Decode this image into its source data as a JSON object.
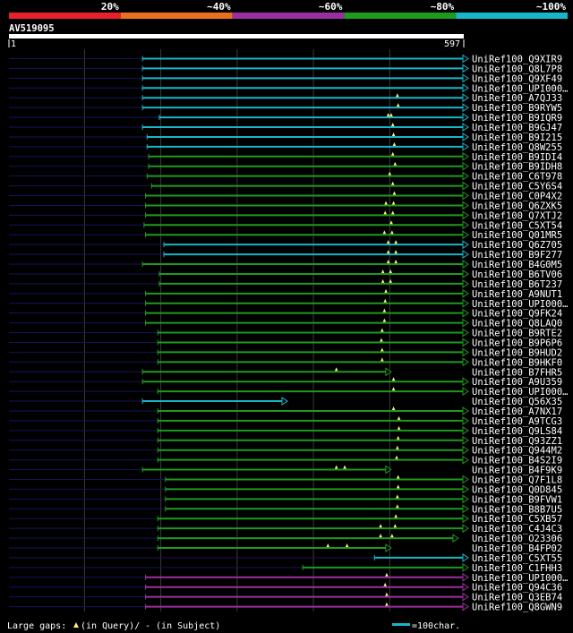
{
  "header": {
    "identity_bins": [
      "20%",
      "~40%",
      "~60%",
      "~80%",
      "~100%"
    ],
    "bin_colors": [
      "#e8202a",
      "#e8701e",
      "#9a2fa0",
      "#1e9a1e",
      "#17b6c8"
    ],
    "query_id": "AV519095",
    "scale_start": "1",
    "scale_end": "597",
    "query_length": 597
  },
  "legend": {
    "gap_text": "Large gaps: ",
    "query_gap_text": "(in Query)/",
    "subject_gap_text": "- (in Subject)",
    "scale_text": "=100char."
  },
  "hits": [
    {
      "name": "UniRef100_Q9XIR9",
      "start": 176,
      "end": 597,
      "color": "cyan",
      "arrow": true,
      "marks": []
    },
    {
      "name": "UniRef100_Q8L7P8",
      "start": 176,
      "end": 597,
      "color": "cyan",
      "arrow": true,
      "marks": []
    },
    {
      "name": "UniRef100_Q9XF49",
      "start": 176,
      "end": 597,
      "color": "cyan",
      "arrow": true,
      "marks": []
    },
    {
      "name": "UniRef100_UPI000…",
      "start": 176,
      "end": 597,
      "color": "cyan",
      "arrow": true,
      "marks": []
    },
    {
      "name": "UniRef100_A7QJ33",
      "start": 176,
      "end": 597,
      "color": "cyan",
      "arrow": true,
      "marks": [
        510
      ]
    },
    {
      "name": "UniRef100_B9RYW5",
      "start": 176,
      "end": 597,
      "color": "cyan",
      "arrow": true,
      "marks": [
        511
      ]
    },
    {
      "name": "UniRef100_B9IQR9",
      "start": 198,
      "end": 597,
      "color": "cyan",
      "arrow": true,
      "marks": [
        498,
        502
      ]
    },
    {
      "name": "UniRef100_B9GJ47",
      "start": 176,
      "end": 597,
      "color": "cyan",
      "arrow": true,
      "marks": [
        504
      ]
    },
    {
      "name": "UniRef100_B9I215",
      "start": 182,
      "end": 597,
      "color": "cyan",
      "arrow": true,
      "marks": [
        505
      ]
    },
    {
      "name": "UniRef100_Q8W255",
      "start": 182,
      "end": 597,
      "color": "cyan",
      "arrow": true,
      "marks": [
        506
      ]
    },
    {
      "name": "UniRef100_B9IDI4",
      "start": 184,
      "end": 597,
      "color": "green",
      "arrow": true,
      "marks": [
        504
      ]
    },
    {
      "name": "UniRef100_B9IDH8",
      "start": 184,
      "end": 597,
      "color": "green",
      "arrow": true,
      "marks": [
        507
      ]
    },
    {
      "name": "UniRef100_C6T978",
      "start": 182,
      "end": 597,
      "color": "green",
      "arrow": true,
      "marks": [
        500
      ]
    },
    {
      "name": "UniRef100_C5Y6S4",
      "start": 188,
      "end": 597,
      "color": "green",
      "arrow": true,
      "marks": [
        504
      ]
    },
    {
      "name": "UniRef100_C0P4X2",
      "start": 180,
      "end": 597,
      "color": "green",
      "arrow": true,
      "marks": [
        506
      ]
    },
    {
      "name": "UniRef100_Q6ZXK5",
      "start": 180,
      "end": 597,
      "color": "green",
      "arrow": true,
      "marks": [
        495,
        505
      ]
    },
    {
      "name": "UniRef100_Q7XTJ2",
      "start": 180,
      "end": 597,
      "color": "green",
      "arrow": true,
      "marks": [
        494,
        504
      ]
    },
    {
      "name": "UniRef100_C5XT54",
      "start": 178,
      "end": 597,
      "color": "green",
      "arrow": true,
      "marks": [
        502
      ]
    },
    {
      "name": "UniRef100_Q01MR5",
      "start": 180,
      "end": 597,
      "color": "green",
      "arrow": true,
      "marks": [
        493,
        503
      ]
    },
    {
      "name": "UniRef100_Q6Z705",
      "start": 204,
      "end": 597,
      "color": "cyan",
      "arrow": true,
      "marks": [
        498,
        508
      ]
    },
    {
      "name": "UniRef100_B9F277",
      "start": 204,
      "end": 597,
      "color": "cyan",
      "arrow": true,
      "marks": [
        498,
        508
      ]
    },
    {
      "name": "UniRef100_B4G0M5",
      "start": 176,
      "end": 597,
      "color": "green",
      "arrow": true,
      "marks": [
        498,
        508
      ]
    },
    {
      "name": "UniRef100_B6TV06",
      "start": 198,
      "end": 597,
      "color": "green",
      "arrow": true,
      "marks": [
        491,
        501
      ]
    },
    {
      "name": "UniRef100_B6T237",
      "start": 198,
      "end": 597,
      "color": "green",
      "arrow": true,
      "marks": [
        491,
        501
      ]
    },
    {
      "name": "UniRef100_A9NUT1",
      "start": 180,
      "end": 597,
      "color": "green",
      "arrow": true,
      "marks": [
        495
      ]
    },
    {
      "name": "UniRef100_UPI000…",
      "start": 180,
      "end": 597,
      "color": "green",
      "arrow": true,
      "marks": [
        494
      ]
    },
    {
      "name": "UniRef100_Q9FK24",
      "start": 180,
      "end": 597,
      "color": "green",
      "arrow": true,
      "marks": [
        493
      ]
    },
    {
      "name": "UniRef100_Q8LAQ0",
      "start": 180,
      "end": 597,
      "color": "green",
      "arrow": true,
      "marks": [
        493
      ]
    },
    {
      "name": "UniRef100_B9RTE2",
      "start": 196,
      "end": 597,
      "color": "green",
      "arrow": true,
      "marks": [
        490
      ]
    },
    {
      "name": "UniRef100_B9P6P6",
      "start": 196,
      "end": 597,
      "color": "green",
      "arrow": true,
      "marks": [
        489
      ]
    },
    {
      "name": "UniRef100_B9HUD2",
      "start": 196,
      "end": 597,
      "color": "green",
      "arrow": true,
      "marks": [
        490
      ]
    },
    {
      "name": "UniRef100_B9HKF0",
      "start": 196,
      "end": 597,
      "color": "green",
      "arrow": true,
      "marks": [
        490
      ]
    },
    {
      "name": "UniRef100_B7FHR5",
      "start": 176,
      "end": 496,
      "color": "green",
      "arrow": true,
      "marks": [
        430
      ]
    },
    {
      "name": "UniRef100_A9U359",
      "start": 176,
      "end": 597,
      "color": "green",
      "arrow": true,
      "marks": [
        505
      ]
    },
    {
      "name": "UniRef100_UPI000…",
      "start": 196,
      "end": 597,
      "color": "green",
      "arrow": true,
      "marks": [
        505
      ]
    },
    {
      "name": "UniRef100_Q56X35",
      "start": 176,
      "end": 360,
      "color": "cyan",
      "arrow": true,
      "marks": []
    },
    {
      "name": "UniRef100_A7NX17",
      "start": 196,
      "end": 597,
      "color": "green",
      "arrow": true,
      "marks": [
        505
      ]
    },
    {
      "name": "UniRef100_A9TCG3",
      "start": 196,
      "end": 597,
      "color": "green",
      "arrow": true,
      "marks": [
        512
      ]
    },
    {
      "name": "UniRef100_Q9LS84",
      "start": 196,
      "end": 597,
      "color": "green",
      "arrow": true,
      "marks": [
        512
      ]
    },
    {
      "name": "UniRef100_Q93ZZ1",
      "start": 196,
      "end": 597,
      "color": "green",
      "arrow": true,
      "marks": [
        511
      ]
    },
    {
      "name": "UniRef100_Q944M2",
      "start": 196,
      "end": 597,
      "color": "green",
      "arrow": true,
      "marks": [
        510
      ]
    },
    {
      "name": "UniRef100_B4S2I9",
      "start": 196,
      "end": 597,
      "color": "green",
      "arrow": true,
      "marks": [
        509
      ]
    },
    {
      "name": "UniRef100_B4F9K9",
      "start": 176,
      "end": 496,
      "color": "green",
      "arrow": true,
      "marks": [
        430,
        441
      ]
    },
    {
      "name": "UniRef100_Q7F1L8",
      "start": 206,
      "end": 597,
      "color": "green",
      "arrow": true,
      "marks": [
        511
      ]
    },
    {
      "name": "UniRef100_Q0D845",
      "start": 206,
      "end": 597,
      "color": "green",
      "arrow": true,
      "marks": [
        511
      ]
    },
    {
      "name": "UniRef100_B9FVW1",
      "start": 206,
      "end": 597,
      "color": "green",
      "arrow": true,
      "marks": [
        510
      ]
    },
    {
      "name": "UniRef100_B8B7U5",
      "start": 206,
      "end": 597,
      "color": "green",
      "arrow": true,
      "marks": [
        510
      ]
    },
    {
      "name": "UniRef100_C5XB57",
      "start": 196,
      "end": 597,
      "color": "green",
      "arrow": true,
      "marks": [
        508
      ]
    },
    {
      "name": "UniRef100_C4J4C3",
      "start": 196,
      "end": 597,
      "color": "green",
      "arrow": true,
      "marks": [
        488,
        507
      ]
    },
    {
      "name": "UniRef100_O23306",
      "start": 196,
      "end": 584,
      "color": "green",
      "arrow": true,
      "marks": [
        488,
        503
      ]
    },
    {
      "name": "UniRef100_B4FP02",
      "start": 196,
      "end": 496,
      "color": "green",
      "arrow": true,
      "marks": [
        419,
        444
      ]
    },
    {
      "name": "UniRef100_C5XT55",
      "start": 480,
      "end": 597,
      "color": "cyan",
      "arrow": true,
      "marks": []
    },
    {
      "name": "UniRef100_C1FHH3",
      "start": 386,
      "end": 597,
      "color": "green",
      "arrow": true,
      "marks": []
    },
    {
      "name": "UniRef100_UPI000…",
      "start": 180,
      "end": 597,
      "color": "purple",
      "arrow": true,
      "marks": [
        496
      ]
    },
    {
      "name": "UniRef100_Q94C36",
      "start": 180,
      "end": 597,
      "color": "purple",
      "arrow": true,
      "marks": [
        494
      ]
    },
    {
      "name": "UniRef100_Q3EB74",
      "start": 180,
      "end": 597,
      "color": "purple",
      "arrow": true,
      "marks": [
        496
      ]
    },
    {
      "name": "UniRef100_Q8GWN9",
      "start": 180,
      "end": 597,
      "color": "purple",
      "arrow": true,
      "marks": [
        496
      ]
    }
  ]
}
